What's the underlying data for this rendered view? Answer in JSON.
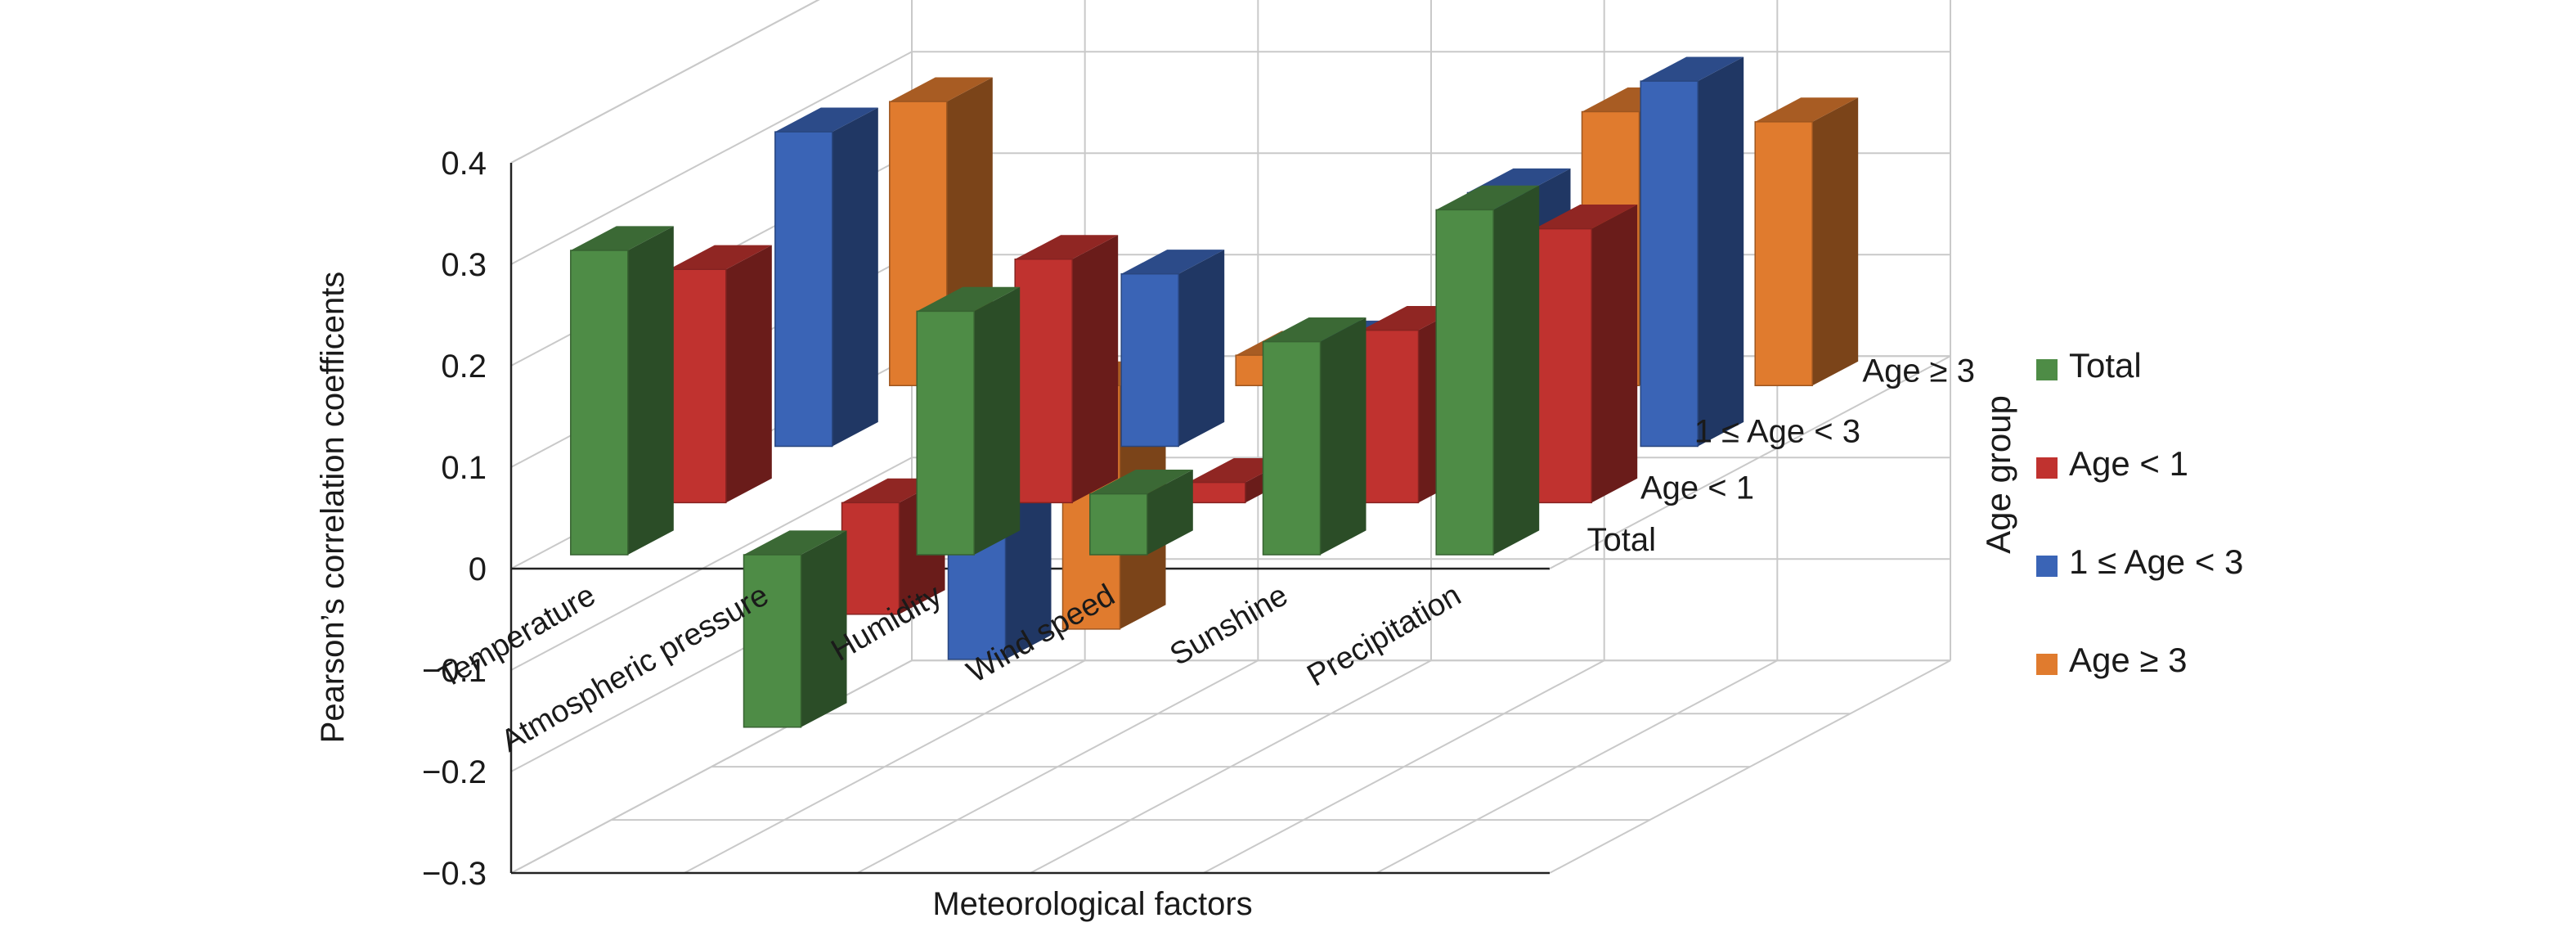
{
  "chart_data": {
    "type": "bar",
    "subtype": "3d-clustered-column",
    "title": "",
    "xlabel": "Meteorological factors",
    "ylabel": "Pearson’s correlation coefficents",
    "ylim": [
      -0.3,
      0.4
    ],
    "yticks": [
      "0.4",
      "0.3",
      "0.2",
      "0.1",
      "0",
      "−0.1",
      "−0.2",
      "−0.3"
    ],
    "grid": true,
    "categories": [
      "Temperature",
      "Atmospheric pressure",
      "Humidity",
      "Wind speed",
      "Sunshine",
      "Precipitation"
    ],
    "depth_labels": [
      "Total",
      "Age < 1",
      "1 ≤ Age < 3",
      "Age ≥ 3"
    ],
    "legend_title": "Age group",
    "legend_position": "right",
    "series": [
      {
        "name": "Total",
        "color": "#4e8c46",
        "values": [
          0.3,
          -0.17,
          0.24,
          0.06,
          0.21,
          0.34
        ]
      },
      {
        "name": "Age < 1",
        "color": "#c0322f",
        "values": [
          0.23,
          -0.11,
          0.24,
          0.02,
          0.17,
          0.27
        ]
      },
      {
        "name": "1 ≤ Age < 3",
        "color": "#3a64b6",
        "values": [
          0.31,
          -0.21,
          0.17,
          0.1,
          0.25,
          0.36
        ]
      },
      {
        "name": "Age ≥ 3",
        "color": "#e07b2e",
        "values": [
          0.28,
          -0.24,
          0.03,
          0.0,
          0.27,
          0.26
        ]
      }
    ]
  }
}
